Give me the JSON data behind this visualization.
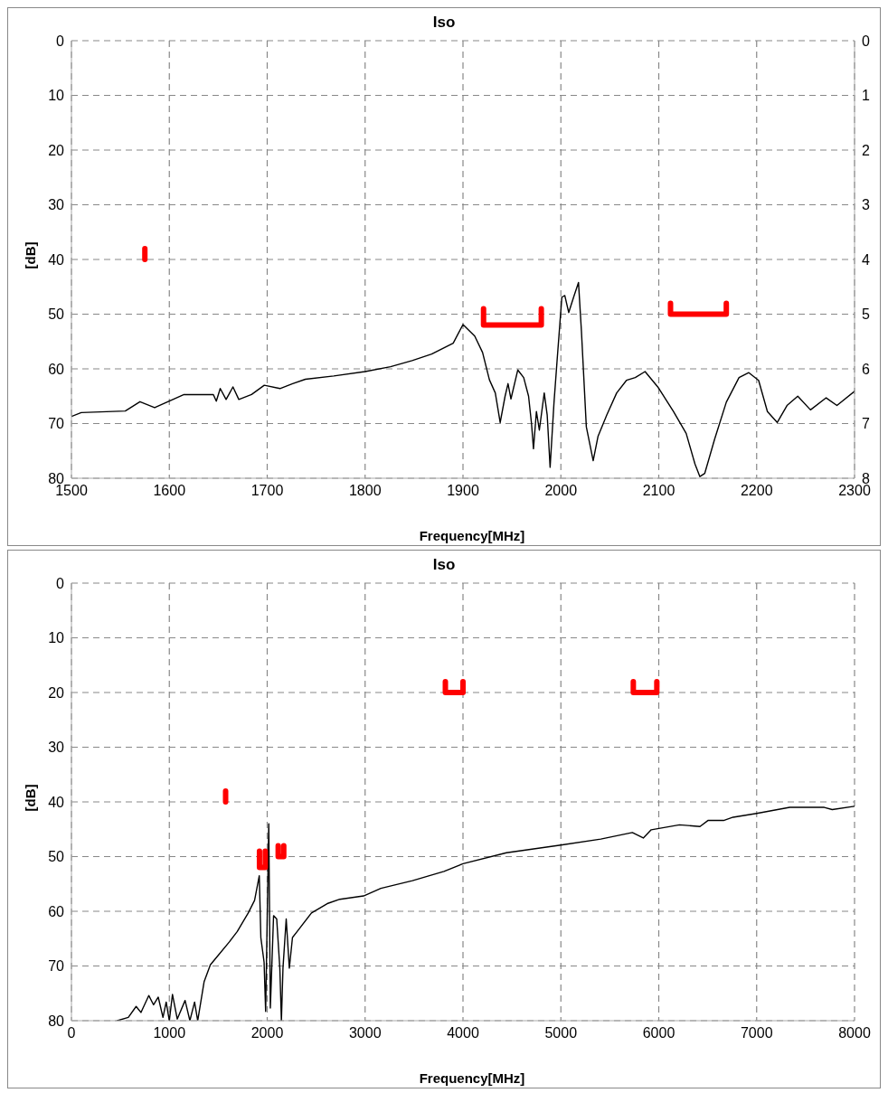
{
  "chart_data": [
    {
      "type": "line",
      "title": "Iso",
      "xlabel": "Frequency[MHz]",
      "ylabel": "[dB]",
      "xlim": [
        1500,
        2300
      ],
      "xticks": [
        1500,
        1600,
        1700,
        1800,
        1900,
        2000,
        2100,
        2200,
        2300
      ],
      "ylim": [
        80,
        0
      ],
      "yticks": [
        0,
        10,
        20,
        30,
        40,
        50,
        60,
        70,
        80
      ],
      "y2lim": [
        8,
        0
      ],
      "y2ticks": [
        0,
        1,
        2,
        3,
        4,
        5,
        6,
        7,
        8
      ],
      "grid": true,
      "marker": "none",
      "series": [
        {
          "color": "#000000",
          "x": [
            1500,
            1510,
            1555,
            1570,
            1585,
            1615,
            1645,
            1648,
            1652,
            1658,
            1665,
            1671,
            1684,
            1697,
            1713,
            1726,
            1739,
            1768,
            1800,
            1826,
            1848,
            1868,
            1890,
            1900,
            1912,
            1920,
            1927,
            1933,
            1938,
            1943,
            1946,
            1949,
            1956,
            1962,
            1967,
            1970,
            1972,
            1975,
            1978,
            1983,
            1986,
            1989,
            1993,
            1996,
            2001,
            2004,
            2008,
            2013,
            2018,
            2021,
            2026,
            2033,
            2038,
            2047,
            2057,
            2067,
            2076,
            2086,
            2099,
            2115,
            2128,
            2137,
            2142,
            2147,
            2157,
            2169,
            2182,
            2192,
            2202,
            2211,
            2221,
            2231,
            2242,
            2255,
            2271,
            2282,
            2300
          ],
          "values": [
            68.7,
            68,
            67.7,
            66,
            67.1,
            64.7,
            64.7,
            65.9,
            63.6,
            65.6,
            63.3,
            65.6,
            64.7,
            63,
            63.6,
            62.7,
            61.9,
            61.3,
            60.5,
            59.6,
            58.5,
            57.3,
            55.3,
            51.9,
            54,
            57,
            62,
            64.4,
            69.8,
            65,
            62.7,
            65.5,
            60.2,
            61.6,
            65,
            70,
            74.6,
            67.8,
            71.2,
            64.4,
            68.4,
            78,
            66.1,
            58.8,
            46.9,
            46.6,
            49.7,
            46.9,
            44.2,
            53.1,
            70.6,
            76.8,
            72.3,
            68.4,
            64.4,
            62.1,
            61.6,
            60.5,
            63.3,
            67.8,
            71.8,
            77.4,
            79.7,
            79.1,
            72.9,
            66.1,
            61.6,
            60.7,
            62.1,
            67.8,
            69.8,
            66.7,
            65,
            67.5,
            65.3,
            66.7,
            64.1
          ]
        },
        {
          "color": "#ff0000",
          "x": [
            1575,
            1575
          ],
          "values": [
            38,
            40
          ]
        },
        {
          "color": "#ff0000",
          "x": [
            1921,
            1921,
            1980,
            1980
          ],
          "values": [
            49,
            52,
            52,
            49
          ]
        },
        {
          "color": "#ff0000",
          "x": [
            2112,
            2112,
            2169,
            2169
          ],
          "values": [
            48,
            50,
            50,
            48
          ]
        }
      ]
    },
    {
      "type": "line",
      "title": "Iso",
      "xlabel": "Frequency[MHz]",
      "ylabel": "[dB]",
      "xlim": [
        0,
        8000
      ],
      "xticks": [
        0,
        1000,
        2000,
        3000,
        4000,
        5000,
        6000,
        7000,
        8000
      ],
      "ylim": [
        80,
        0
      ],
      "yticks": [
        0,
        10,
        20,
        30,
        40,
        50,
        60,
        70,
        80
      ],
      "grid": true,
      "marker": "none",
      "series": [
        {
          "color": "#000000",
          "x": [
            468,
            581,
            661,
            710,
            790,
            839,
            887,
            935,
            968,
            1000,
            1032,
            1081,
            1161,
            1210,
            1258,
            1290,
            1355,
            1419,
            1484,
            1613,
            1694,
            1806,
            1871,
            1919,
            1935,
            1968,
            1984,
            2016,
            2032,
            2065,
            2097,
            2129,
            2145,
            2161,
            2194,
            2226,
            2258,
            2306,
            2452,
            2613,
            2742,
            2984,
            3161,
            3484,
            3806,
            4000,
            4444,
            5000,
            5408,
            5730,
            5842,
            5923,
            6212,
            6421,
            6502,
            6662,
            6759,
            7000,
            7338,
            7691,
            7772,
            7997
          ],
          "values": [
            80,
            79.4,
            77.4,
            78.5,
            75.4,
            77.1,
            75.7,
            79.4,
            76.6,
            80,
            75.2,
            79.7,
            76.3,
            80,
            76.6,
            80,
            72.9,
            69.8,
            68.4,
            65.6,
            63.7,
            60.3,
            58,
            53.5,
            64.8,
            69.3,
            78.3,
            44,
            77.7,
            60.8,
            61.4,
            70.4,
            80,
            70.4,
            61.4,
            70.4,
            64.8,
            63.7,
            60.3,
            58.6,
            57.8,
            57.2,
            55.8,
            54.4,
            52.7,
            51.3,
            49.3,
            47.9,
            46.8,
            45.6,
            46.6,
            45.1,
            44.2,
            44.5,
            43.4,
            43.4,
            42.8,
            42.1,
            41,
            41,
            41.4,
            40.8
          ]
        },
        {
          "color": "#ff0000",
          "x": [
            1575,
            1575
          ],
          "values": [
            38,
            40
          ]
        },
        {
          "color": "#ff0000",
          "x": [
            1921,
            1921,
            1980,
            1980
          ],
          "values": [
            49,
            52,
            52,
            49
          ]
        },
        {
          "color": "#ff0000",
          "x": [
            2112,
            2112,
            2169,
            2169
          ],
          "values": [
            48,
            50,
            50,
            48
          ]
        },
        {
          "color": "#ff0000",
          "x": [
            3820,
            3820,
            4000,
            4000
          ],
          "values": [
            18,
            20,
            20,
            18
          ]
        },
        {
          "color": "#ff0000",
          "x": [
            5740,
            5740,
            5980,
            5980
          ],
          "values": [
            18,
            20,
            20,
            18
          ]
        }
      ]
    }
  ]
}
